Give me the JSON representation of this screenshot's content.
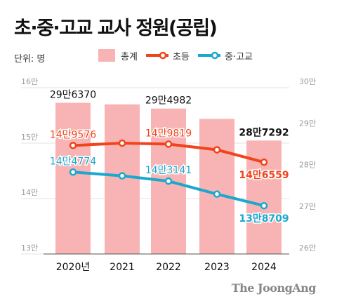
{
  "title": "초·중·고교 교사 정원(공립)",
  "unit_label": "단위: 명",
  "brand": "The JoongAng",
  "colors": {
    "bar": "#f8b4b4",
    "elementary": "#f0441c",
    "secondary": "#1ba8cf",
    "grid": "#e3e3e3",
    "axis_text": "#999999"
  },
  "legend": {
    "total": "총계",
    "elementary": "초등",
    "secondary": "중·고교"
  },
  "chart_data": {
    "type": "bar",
    "categories": [
      "2020년",
      "2021",
      "2022",
      "2023",
      "2024"
    ],
    "left_axis": {
      "ticks": [
        "16만",
        "15만",
        "14만",
        "13만"
      ],
      "range": [
        130000,
        160000
      ]
    },
    "right_axis": {
      "ticks": [
        "30만",
        "29만",
        "28만",
        "27만",
        "26만"
      ],
      "range": [
        260000,
        300000
      ]
    },
    "series": [
      {
        "name": "총계",
        "type": "bar",
        "axis": "right",
        "values": [
          296370,
          296000,
          294982,
          292500,
          287292
        ],
        "labels": [
          "29만6370",
          "",
          "29만4982",
          "",
          "28만7292"
        ]
      },
      {
        "name": "초등",
        "type": "line",
        "axis": "left",
        "values": [
          149576,
          150000,
          149819,
          148800,
          146559
        ],
        "labels": [
          "14만9576",
          "",
          "14만9819",
          "",
          "14만6559"
        ]
      },
      {
        "name": "중·고교",
        "type": "line",
        "axis": "left",
        "values": [
          144774,
          144100,
          143141,
          140800,
          138709
        ],
        "labels": [
          "14만4774",
          "",
          "14만3141",
          "",
          "13만8709"
        ]
      }
    ]
  }
}
